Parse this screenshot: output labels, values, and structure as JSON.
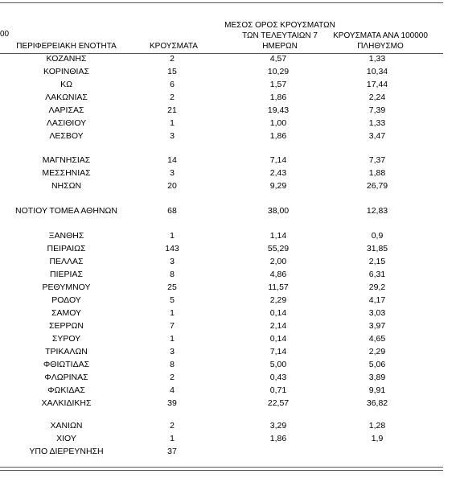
{
  "stray_text": "00",
  "headers": {
    "region": "ΠΕΡΙΦΕΡΕΙΑΚΗ ΕΝΟΤΗΤΑ",
    "cases": "ΚΡΟΥΣΜΑΤΑ",
    "avg_line1": "ΜΕΣΟΣ ΟΡΟΣ ΚΡΟΥΣΜΑΤΩΝ",
    "avg_line2": "ΤΩΝ ΤΕΛΕΥΤΑΙΩΝ 7",
    "avg_line3": "ΗΜΕΡΩΝ",
    "per100k_line1": "ΚΡΟΥΣΜΑΤΑ ΑΝΑ 100000",
    "per100k_line2": "ΠΛΗΘΥΣΜΟ"
  },
  "rows": [
    {
      "region": "ΚΟΖΑΝΗΣ",
      "cases": "2",
      "avg": "4,57",
      "per100k": "1,33"
    },
    {
      "region": "ΚΟΡΙΝΘΙΑΣ",
      "cases": "15",
      "avg": "10,29",
      "per100k": "10,34"
    },
    {
      "region": "ΚΩ",
      "cases": "6",
      "avg": "1,57",
      "per100k": "17,44"
    },
    {
      "region": "ΛΑΚΩΝΙΑΣ",
      "cases": "2",
      "avg": "1,86",
      "per100k": "2,24"
    },
    {
      "region": "ΛΑΡΙΣΑΣ",
      "cases": "21",
      "avg": "19,43",
      "per100k": "7,39"
    },
    {
      "region": "ΛΑΣΙΘΙΟΥ",
      "cases": "1",
      "avg": "1,00",
      "per100k": "1,33"
    },
    {
      "region": "ΛΕΣΒΟΥ",
      "cases": "3",
      "avg": "1,86",
      "per100k": "3,47"
    },
    {
      "region": "ΜΑΓΝΗΣΙΑΣ",
      "cases": "14",
      "avg": "7,14",
      "per100k": "7,37"
    },
    {
      "region": "ΜΕΣΣΗΝΙΑΣ",
      "cases": "3",
      "avg": "2,43",
      "per100k": "1,88"
    },
    {
      "region": "ΝΗΣΩΝ",
      "cases": "20",
      "avg": "9,29",
      "per100k": "26,79"
    },
    {
      "region": "ΝΟΤΙΟΥ ΤΟΜΕΑ ΑΘΗΝΩΝ",
      "cases": "68",
      "avg": "38,00",
      "per100k": "12,83"
    },
    {
      "region": "ΞΑΝΘΗΣ",
      "cases": "1",
      "avg": "1,14",
      "per100k": "0,9"
    },
    {
      "region": "ΠΕΙΡΑΙΩΣ",
      "cases": "143",
      "avg": "55,29",
      "per100k": "31,85"
    },
    {
      "region": "ΠΕΛΛΑΣ",
      "cases": "3",
      "avg": "2,00",
      "per100k": "2,15"
    },
    {
      "region": "ΠΙΕΡΙΑΣ",
      "cases": "8",
      "avg": "4,86",
      "per100k": "6,31"
    },
    {
      "region": "ΡΕΘΥΜΝΟΥ",
      "cases": "25",
      "avg": "11,57",
      "per100k": "29,2"
    },
    {
      "region": "ΡΟΔΟΥ",
      "cases": "5",
      "avg": "2,29",
      "per100k": "4,17"
    },
    {
      "region": "ΣΑΜΟΥ",
      "cases": "1",
      "avg": "0,14",
      "per100k": "3,03"
    },
    {
      "region": "ΣΕΡΡΩΝ",
      "cases": "7",
      "avg": "2,14",
      "per100k": "3,97"
    },
    {
      "region": "ΣΥΡΟΥ",
      "cases": "1",
      "avg": "0,14",
      "per100k": "4,65"
    },
    {
      "region": "ΤΡΙΚΑΛΩΝ",
      "cases": "3",
      "avg": "7,14",
      "per100k": "2,29"
    },
    {
      "region": "ΦΘΙΩΤΙΔΑΣ",
      "cases": "8",
      "avg": "5,00",
      "per100k": "5,06"
    },
    {
      "region": "ΦΛΩΡΙΝΑΣ",
      "cases": "2",
      "avg": "0,43",
      "per100k": "3,89"
    },
    {
      "region": "ΦΩΚΙΔΑΣ",
      "cases": "4",
      "avg": "0,71",
      "per100k": "9,91"
    },
    {
      "region": "ΧΑΛΚΙΔΙΚΗΣ",
      "cases": "39",
      "avg": "22,57",
      "per100k": "36,82"
    },
    {
      "region": "ΧΑΝΙΩΝ",
      "cases": "2",
      "avg": "3,29",
      "per100k": "1,28"
    },
    {
      "region": "ΧΙΟΥ",
      "cases": "1",
      "avg": "1,86",
      "per100k": "1,9"
    },
    {
      "region": "ΥΠΟ ΔΙΕΡΕΥΝΗΣΗ",
      "cases": "37",
      "avg": "",
      "per100k": ""
    }
  ]
}
